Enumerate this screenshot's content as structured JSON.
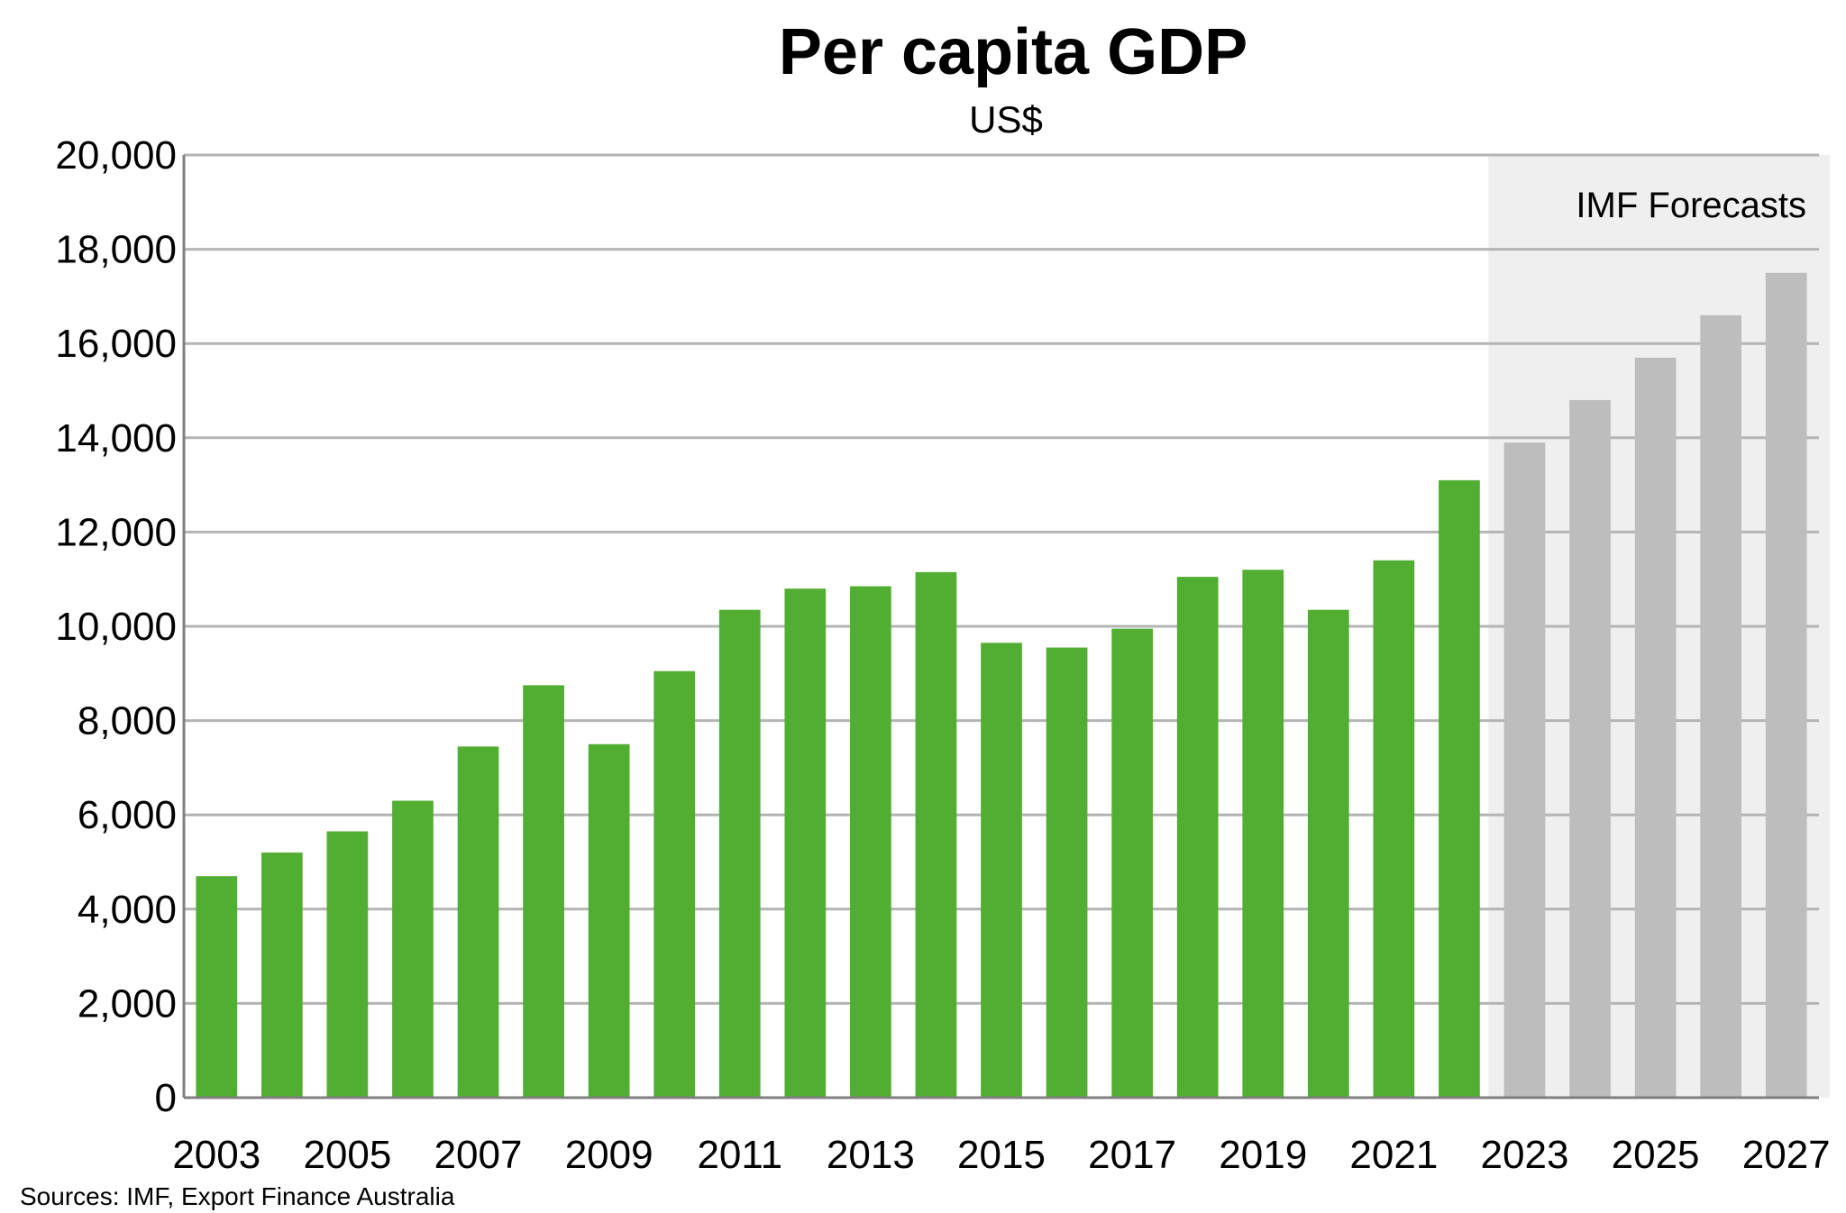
{
  "colors": {
    "actual_bar": "#52AE32",
    "forecast_bar": "#BDBDBD",
    "forecast_region": "#EFEFEF",
    "gridline": "#B4B4B4",
    "axis": "#7F7F7F",
    "text": "#000000"
  },
  "chart_data": {
    "type": "bar",
    "title": "Per capita GDP",
    "subtitle": "US$",
    "xlabel": "",
    "ylabel": "",
    "ylim": [
      0,
      20000
    ],
    "yticks": [
      "0",
      "2,000",
      "4,000",
      "6,000",
      "8,000",
      "10,000",
      "12,000",
      "14,000",
      "16,000",
      "18,000",
      "20,000"
    ],
    "ytick_values": [
      0,
      2000,
      4000,
      6000,
      8000,
      10000,
      12000,
      14000,
      16000,
      18000,
      20000
    ],
    "grid": true,
    "categories": [
      "2003",
      "2004",
      "2005",
      "2006",
      "2007",
      "2008",
      "2009",
      "2010",
      "2011",
      "2012",
      "2013",
      "2014",
      "2015",
      "2016",
      "2017",
      "2018",
      "2019",
      "2020",
      "2021",
      "2022",
      "2023",
      "2024",
      "2025",
      "2026",
      "2027"
    ],
    "xtick_labels": [
      "2003",
      "",
      "2005",
      "",
      "2007",
      "",
      "2009",
      "",
      "2011",
      "",
      "2013",
      "",
      "2015",
      "",
      "2017",
      "",
      "2019",
      "",
      "2021",
      "",
      "2023",
      "",
      "2025",
      "",
      "2027"
    ],
    "values": [
      4700,
      5200,
      5650,
      6300,
      7450,
      8750,
      7500,
      9050,
      10350,
      10800,
      10850,
      11150,
      9650,
      9550,
      9950,
      11050,
      11200,
      10350,
      11400,
      13100,
      13900,
      14800,
      15700,
      16600,
      17500
    ],
    "forecast_from": "2023",
    "forecast_label": "IMF Forecasts",
    "source": "Sources: IMF, Export Finance Australia"
  }
}
